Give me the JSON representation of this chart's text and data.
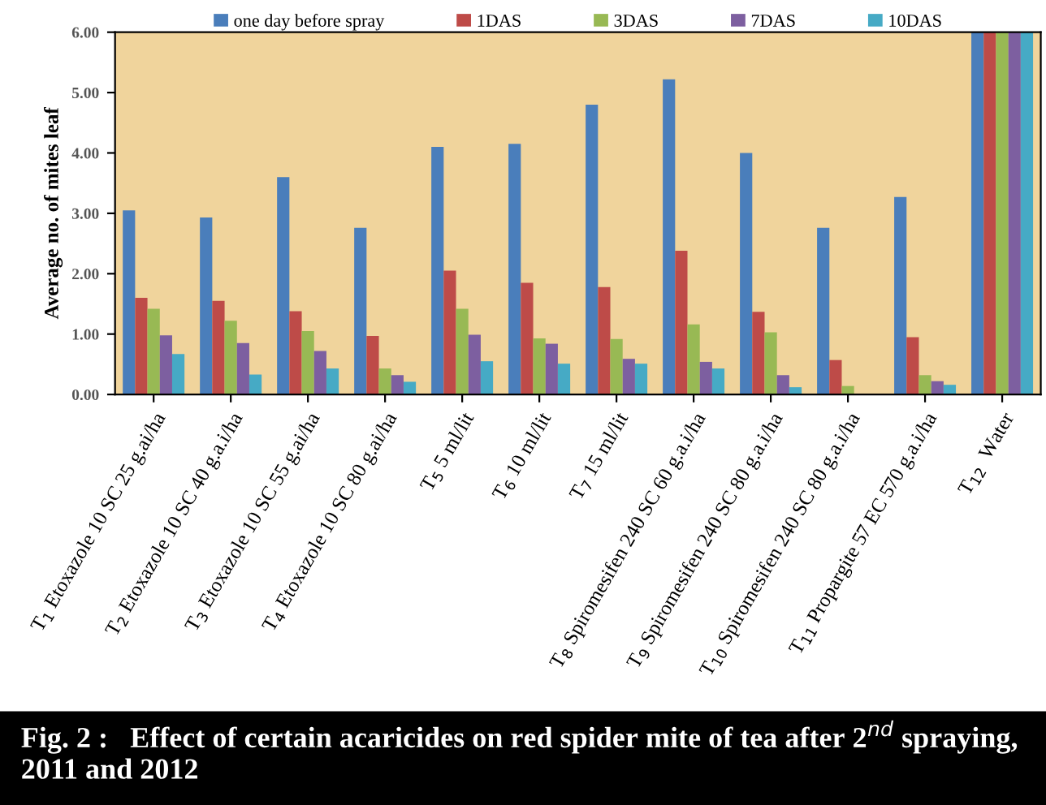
{
  "chart_data": {
    "type": "bar",
    "title": "Fig. 2 :   Effect of certain acaricides on red spider mite of tea after 2$^{nd}$ spraying, 2011 and 2012",
    "ylabel": "Average no. of mites leaf",
    "categories": [
      "T$_{1}$ Etoxazole 10 SC 25 g.ai/ha",
      "T$_{2}$ Etoxazole 10 SC 40 g.a.i/ha",
      "T$_{3}$ Etoxazole 10 SC 55 g.ai/ha",
      "T$_{4}$ Etoxazole 10 SC 80 g.ai/ha",
      "T$_{5}$ 5 ml/lit",
      "T$_{6}$ 10 ml/lit",
      "T$_{7}$ 15 ml/lit",
      "T$_{8}$ Spiromesifen 240 SC 60 g.a.i/ha",
      "T$_{9}$ Spiromesifen 240 SC 80 g.a.i/ha",
      "T$_{10}$ Spiromesifen 240 SC 80 g.a.i/ha",
      "T$_{11}$ Propargite 57 EC 570 g.a.i/ha",
      "T$_{12}$  Water"
    ],
    "series": [
      {
        "name": "one day before spray",
        "color": "#4a7ebb",
        "values": [
          3.05,
          2.93,
          3.6,
          2.76,
          4.1,
          4.15,
          4.8,
          5.22,
          4.0,
          2.76,
          3.27,
          6.0
        ]
      },
      {
        "name": "1DAS",
        "color": "#be4b48",
        "values": [
          1.6,
          1.55,
          1.38,
          0.97,
          2.05,
          1.85,
          1.78,
          2.38,
          1.37,
          0.57,
          0.95,
          6.0
        ]
      },
      {
        "name": "3DAS",
        "color": "#98b954",
        "values": [
          1.42,
          1.22,
          1.05,
          0.43,
          1.42,
          0.93,
          0.92,
          1.16,
          1.03,
          0.14,
          0.32,
          6.0
        ]
      },
      {
        "name": "7DAS",
        "color": "#7d5fa0",
        "values": [
          0.98,
          0.85,
          0.72,
          0.32,
          0.99,
          0.84,
          0.59,
          0.54,
          0.32,
          0.0,
          0.22,
          6.0
        ]
      },
      {
        "name": "10DAS",
        "color": "#46aac5",
        "values": [
          0.67,
          0.33,
          0.43,
          0.21,
          0.55,
          0.51,
          0.51,
          0.43,
          0.12,
          0.0,
          0.16,
          6.0
        ]
      }
    ],
    "ylim": [
      0,
      6
    ],
    "yticks": [
      {
        "value": 0,
        "label": "0.00"
      },
      {
        "value": 1,
        "label": "1.00"
      },
      {
        "value": 2,
        "label": "2.00"
      },
      {
        "value": 3,
        "label": "3.00"
      },
      {
        "value": 4,
        "label": "4.00"
      },
      {
        "value": 5,
        "label": "5.00"
      },
      {
        "value": 6,
        "label": "6.00"
      }
    ],
    "legend": "top"
  }
}
